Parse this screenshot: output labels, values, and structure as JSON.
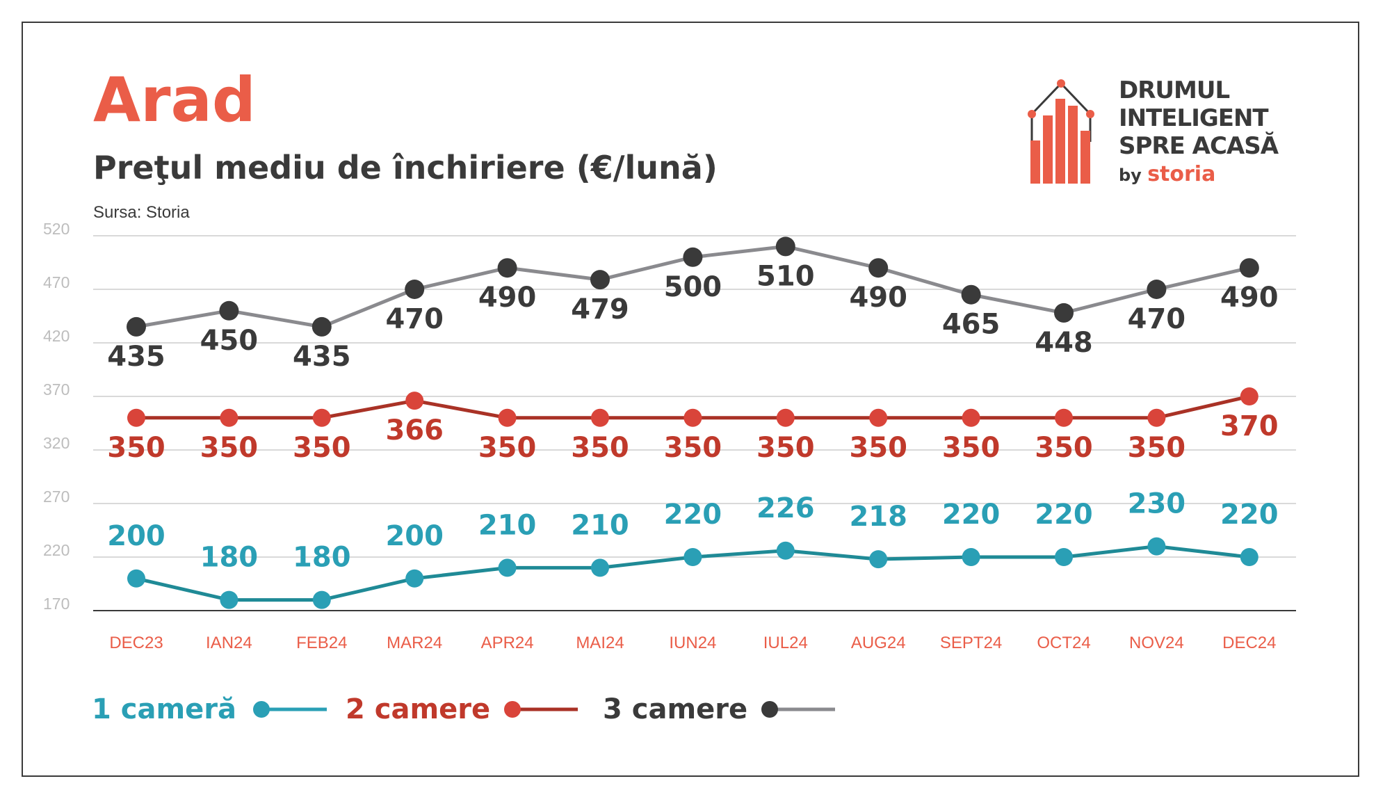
{
  "title": "Arad",
  "subtitle": "Preţul mediu de închiriere (€/lună)",
  "source": "Sursa: Storia",
  "logo": {
    "lines": [
      "DRUMUL",
      "INTELIGENT",
      "SPRE ACASĂ"
    ],
    "by": "by",
    "brand": "storia"
  },
  "colors": {
    "accent": "#ea5d48",
    "one_room": "#2a9fb5",
    "two_rooms": "#c0392b",
    "three_rooms": "#3a3a3a",
    "three_rooms_line": "#8a8a8e"
  },
  "chart_data": {
    "type": "line",
    "categories": [
      "DEC23",
      "IAN24",
      "FEB24",
      "MAR24",
      "APR24",
      "MAI24",
      "IUN24",
      "IUL24",
      "AUG24",
      "SEPT24",
      "OCT24",
      "NOV24",
      "DEC24"
    ],
    "y_ticks": [
      520,
      470,
      420,
      370,
      320,
      270,
      220,
      170
    ],
    "ylim": [
      170,
      520
    ],
    "grid": true,
    "legend_position": "bottom-left",
    "series": [
      {
        "name": "1 cameră",
        "values": [
          200,
          180,
          180,
          200,
          210,
          210,
          220,
          226,
          218,
          220,
          220,
          230,
          220
        ]
      },
      {
        "name": "2 camere",
        "values": [
          350,
          350,
          350,
          366,
          350,
          350,
          350,
          350,
          350,
          350,
          350,
          350,
          370
        ]
      },
      {
        "name": "3 camere",
        "values": [
          435,
          450,
          435,
          470,
          490,
          479,
          500,
          510,
          490,
          465,
          448,
          470,
          490
        ]
      }
    ]
  }
}
